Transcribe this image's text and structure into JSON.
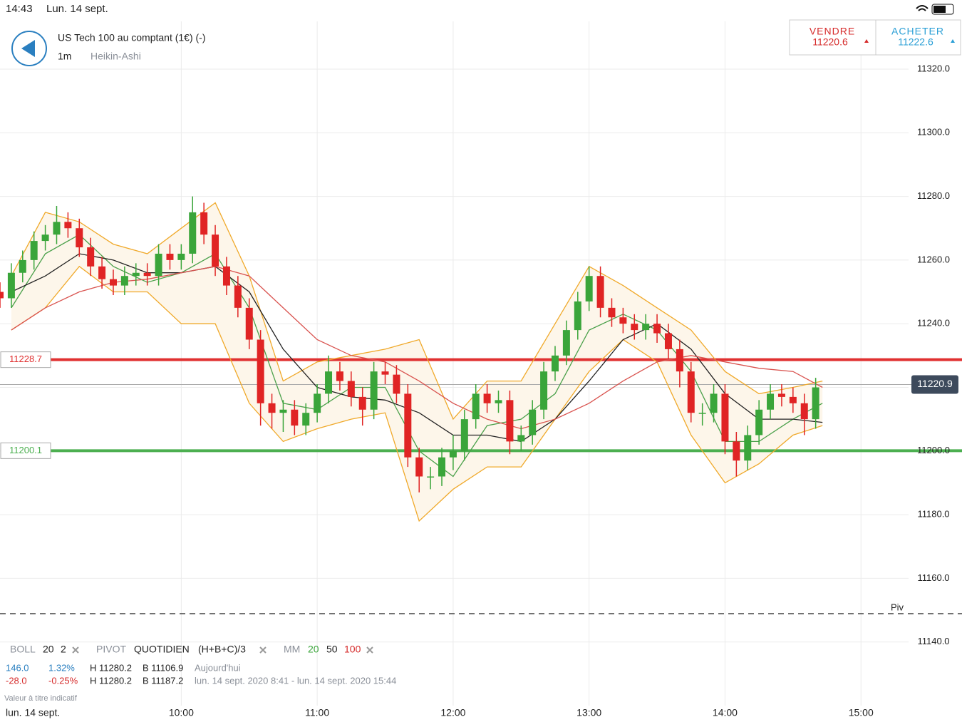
{
  "status_bar": {
    "time": "14:43",
    "date": "Lun. 14 sept."
  },
  "header": {
    "title": "US Tech 100 au comptant (1€) (-)",
    "interval": "1m",
    "chart_style": "Heikin-Ashi"
  },
  "quote": {
    "sell_label": "VENDRE",
    "sell_price": "11220.6",
    "buy_label": "ACHETER",
    "buy_price": "11222.6"
  },
  "indicators": {
    "boll": {
      "name": "BOLL",
      "period": "20",
      "deviation": "2"
    },
    "pivot": {
      "name": "PIVOT",
      "period": "QUOTIDIEN",
      "formula": "(H+B+C)/3"
    },
    "mm": {
      "name": "MM",
      "periods": [
        "20",
        "50",
        "100"
      ]
    },
    "rows": [
      [
        "146.0",
        "1.32%",
        "H 11280.2",
        "B 11106.9",
        "Aujourd'hui"
      ],
      [
        "-28.0",
        "-0.25%",
        "H 11280.2",
        "B 11187.2",
        "lun. 14 sept. 2020 8:41 - lun. 14 sept. 2020 15:44"
      ]
    ],
    "note": "Valeur à titre indicatif"
  },
  "chart_data": {
    "type": "candlestick",
    "x_axis_date": "lun. 14 sept.",
    "x": [
      "08:40",
      "08:45",
      "08:50",
      "08:55",
      "09:00",
      "09:05",
      "09:10",
      "09:15",
      "09:20",
      "09:25",
      "09:30",
      "09:35",
      "09:40",
      "09:45",
      "09:50",
      "09:55",
      "10:00",
      "10:05",
      "10:10",
      "10:15",
      "10:20",
      "10:25",
      "10:30",
      "10:35",
      "10:40",
      "10:45",
      "10:50",
      "10:55",
      "11:00",
      "11:05",
      "11:10",
      "11:15",
      "11:20",
      "11:25",
      "11:30",
      "11:35",
      "11:40",
      "11:45",
      "11:50",
      "11:55",
      "12:00",
      "12:05",
      "12:10",
      "12:15",
      "12:20",
      "12:25",
      "12:30",
      "12:35",
      "12:40",
      "12:45",
      "12:50",
      "12:55",
      "13:00",
      "13:05",
      "13:10",
      "13:15",
      "13:20",
      "13:25",
      "13:30",
      "13:35",
      "13:40",
      "13:45",
      "13:50",
      "13:55",
      "14:00",
      "14:05",
      "14:10",
      "14:15",
      "14:20",
      "14:25",
      "14:30",
      "14:35",
      "14:40"
    ],
    "open": [
      11250,
      11248,
      11256,
      11260,
      11266,
      11268,
      11272,
      11270,
      11264,
      11258,
      11254,
      11252,
      11255,
      11256,
      11255,
      11262,
      11260,
      11262,
      11275,
      11268,
      11258,
      11252,
      11245,
      11235,
      11215,
      11212,
      11213,
      11208,
      11212,
      11218,
      11225,
      11222,
      11217,
      11213,
      11225,
      11224,
      11218,
      11198,
      11192,
      11192,
      11198,
      11200,
      11210,
      11218,
      11215,
      11216,
      11203,
      11205,
      11213,
      11225,
      11230,
      11238,
      11247,
      11255,
      11245,
      11242,
      11240,
      11238,
      11240,
      11237,
      11232,
      11225,
      11212,
      11212,
      11218,
      11203,
      11197,
      11205,
      11213,
      11218,
      11217,
      11215,
      11210
    ],
    "high": [
      11253,
      11259,
      11263,
      11269,
      11271,
      11277,
      11275,
      11273,
      11267,
      11261,
      11257,
      11258,
      11259,
      11259,
      11265,
      11265,
      11265,
      11280,
      11278,
      11271,
      11261,
      11255,
      11248,
      11238,
      11218,
      11216,
      11216,
      11215,
      11221,
      11230,
      11228,
      11225,
      11220,
      11228,
      11228,
      11227,
      11221,
      11201,
      11195,
      11201,
      11205,
      11213,
      11221,
      11221,
      11219,
      11219,
      11208,
      11216,
      11228,
      11233,
      11241,
      11250,
      11258,
      11258,
      11248,
      11245,
      11243,
      11243,
      11243,
      11240,
      11235,
      11228,
      11215,
      11221,
      11221,
      11206,
      11208,
      11216,
      11221,
      11221,
      11220,
      11218,
      11223
    ],
    "low": [
      11245,
      11245,
      11253,
      11257,
      11263,
      11265,
      11267,
      11261,
      11255,
      11251,
      11249,
      11249,
      11252,
      11252,
      11252,
      11257,
      11257,
      11259,
      11265,
      11255,
      11249,
      11242,
      11232,
      11208,
      11207,
      11206,
      11205,
      11205,
      11209,
      11215,
      11219,
      11214,
      11208,
      11210,
      11221,
      11215,
      11195,
      11187,
      11188,
      11189,
      11194,
      11197,
      11207,
      11212,
      11212,
      11199,
      11200,
      11202,
      11210,
      11222,
      11227,
      11235,
      11244,
      11242,
      11239,
      11237,
      11235,
      11235,
      11234,
      11229,
      11220,
      11209,
      11208,
      11209,
      11199,
      11192,
      11194,
      11202,
      11210,
      11214,
      11212,
      11205,
      11207
    ],
    "close": [
      11248,
      11256,
      11260,
      11266,
      11268,
      11272,
      11270,
      11264,
      11258,
      11254,
      11252,
      11255,
      11256,
      11255,
      11262,
      11260,
      11262,
      11275,
      11268,
      11258,
      11252,
      11245,
      11235,
      11215,
      11212,
      11213,
      11208,
      11212,
      11218,
      11225,
      11222,
      11217,
      11213,
      11225,
      11224,
      11218,
      11198,
      11192,
      11192,
      11198,
      11200,
      11210,
      11218,
      11215,
      11216,
      11203,
      11205,
      11213,
      11225,
      11230,
      11238,
      11247,
      11255,
      11245,
      11242,
      11240,
      11238,
      11240,
      11237,
      11232,
      11225,
      11212,
      11212,
      11218,
      11203,
      11197,
      11205,
      11213,
      11218,
      11217,
      11215,
      11210,
      11220
    ],
    "up_color": "#3aa53a",
    "down_color": "#e02424",
    "overlays": {
      "x": [
        "08:45",
        "09:00",
        "09:15",
        "09:30",
        "09:45",
        "10:00",
        "10:15",
        "10:30",
        "10:45",
        "11:00",
        "11:15",
        "11:30",
        "11:45",
        "12:00",
        "12:15",
        "12:30",
        "12:45",
        "13:00",
        "13:15",
        "13:30",
        "13:45",
        "14:00",
        "14:15",
        "14:30",
        "14:43"
      ],
      "band_fill": "#fdf6ea",
      "series": [
        {
          "color": "#f0a92a",
          "values": [
            11255,
            11275,
            11272,
            11265,
            11262,
            11270,
            11278,
            11255,
            11222,
            11228,
            11230,
            11232,
            11235,
            11210,
            11222,
            11222,
            11240,
            11258,
            11252,
            11245,
            11238,
            11225,
            11218,
            11220,
            11222
          ]
        },
        {
          "color": "#f0a92a",
          "values": [
            11238,
            11245,
            11258,
            11250,
            11250,
            11240,
            11240,
            11215,
            11203,
            11207,
            11210,
            11212,
            11178,
            11188,
            11195,
            11195,
            11210,
            11225,
            11235,
            11228,
            11205,
            11190,
            11196,
            11205,
            11208
          ]
        },
        {
          "color": "#4aa04a",
          "values": [
            11245,
            11262,
            11268,
            11258,
            11253,
            11256,
            11262,
            11245,
            11215,
            11213,
            11220,
            11220,
            11200,
            11192,
            11208,
            11210,
            11218,
            11238,
            11243,
            11238,
            11225,
            11203,
            11203,
            11210,
            11215
          ]
        },
        {
          "color": "#222222",
          "values": [
            11250,
            11255,
            11262,
            11260,
            11256,
            11256,
            11258,
            11250,
            11232,
            11220,
            11217,
            11216,
            11212,
            11205,
            11205,
            11203,
            11210,
            11222,
            11235,
            11240,
            11232,
            11218,
            11210,
            11210,
            11209
          ]
        },
        {
          "color": "#d9534f",
          "values": [
            11238,
            11245,
            11250,
            11253,
            11254,
            11256,
            11258,
            11255,
            11245,
            11235,
            11230,
            11228,
            11222,
            11215,
            11210,
            11207,
            11210,
            11215,
            11222,
            11228,
            11230,
            11228,
            11226,
            11225,
            11220
          ]
        }
      ]
    },
    "levels": [
      {
        "value": 11228.7,
        "color": "#e03131"
      },
      {
        "value": 11200.1,
        "color": "#4caf50"
      }
    ],
    "current_price": {
      "value": 11220.9,
      "color": "#3d4a5c"
    },
    "pivot": {
      "label": "Piv",
      "value": 11148.9
    },
    "xlim": [
      "08:40",
      "15:21"
    ],
    "xticks": [
      "10:00",
      "11:00",
      "12:00",
      "13:00",
      "14:00",
      "15:00"
    ],
    "ylim": [
      11120,
      11335
    ],
    "yticks": [
      {
        "value": 11320,
        "label": "11320.0"
      },
      {
        "value": 11300,
        "label": "11300.0"
      },
      {
        "value": 11280,
        "label": "11280.0"
      },
      {
        "value": 11260,
        "label": "11260.0"
      },
      {
        "value": 11240,
        "label": "11240.0"
      },
      {
        "value": 11220,
        "label": "11220.0"
      },
      {
        "value": 11200,
        "label": "11200.0"
      },
      {
        "value": 11180,
        "label": "11180.0"
      },
      {
        "value": 11160,
        "label": "11160.0"
      },
      {
        "value": 11140,
        "label": "11140.0"
      }
    ],
    "grid": true
  }
}
